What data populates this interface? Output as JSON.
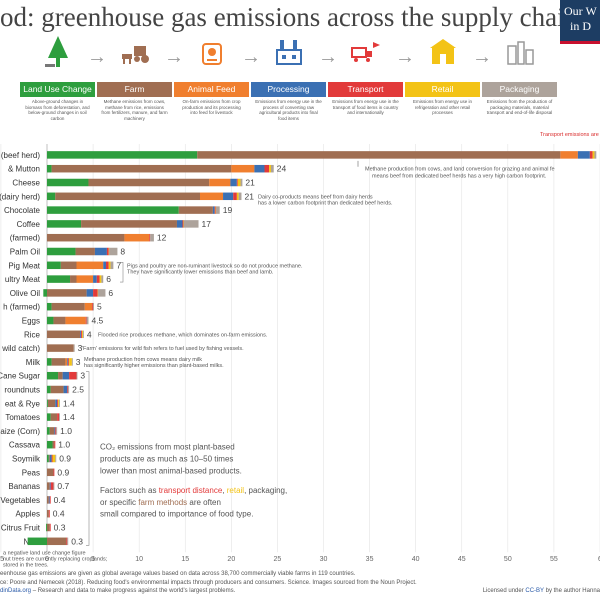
{
  "title": "od: greenhouse gas emissions across the supply chain",
  "logo": {
    "line1": "Our W",
    "line2": "in D"
  },
  "stages": [
    {
      "label": "Land Use Change",
      "color": "#2e9e3e",
      "icon": "tree-icon",
      "desc": "Above-ground changes in biomass from deforestation, and below-ground changes in soil carbon"
    },
    {
      "label": "Farm",
      "color": "#a06e52",
      "icon": "tractor-cow-icon",
      "desc": "Methane emissions from cows, methane from rice, emissions from fertilizers, manure, and farm machinery"
    },
    {
      "label": "Animal Feed",
      "color": "#f07f2f",
      "icon": "feed-icon",
      "desc": "On-farm emissions from crop production and its processing into feed for livestock"
    },
    {
      "label": "Processing",
      "color": "#3b70b3",
      "icon": "factory-icon",
      "desc": "Emissions from energy use in the process of converting raw agricultural products into final food items"
    },
    {
      "label": "Transport",
      "color": "#e23a3a",
      "icon": "truck-plane-icon",
      "desc": "Emissions from energy use in the transport of food items in country and internationally"
    },
    {
      "label": "Retail",
      "color": "#f3c316",
      "icon": "shop-icon",
      "desc": "Emissions from energy use in refrigeration and other retail processes"
    },
    {
      "label": "Packaging",
      "color": "#ada39b",
      "icon": "packaging-icon",
      "desc": "Emissions from the production of packaging materials, material transport and end-of-life disposal"
    }
  ],
  "chart_data": {
    "type": "bar",
    "orientation": "horizontal",
    "stacked": true,
    "xlabel": "Greenhouse gas emissions per kilogram of food product",
    "xlabel_sub": "(kg CO₂-equivalents per kg product)",
    "xlim": [
      -5,
      60
    ],
    "xticks": [
      "-5",
      "0",
      "5",
      "10",
      "15",
      "20",
      "25",
      "30",
      "35",
      "40",
      "45",
      "50",
      "55",
      "6"
    ],
    "grid": true,
    "series_names": [
      "Land Use Change",
      "Farm",
      "Animal Feed",
      "Processing",
      "Transport",
      "Retail",
      "Packaging"
    ],
    "series_colors": [
      "#2e9e3e",
      "#a06e52",
      "#f07f2f",
      "#3b70b3",
      "#e23a3a",
      "#f3c316",
      "#ada39b"
    ],
    "rows": [
      {
        "label": "(beef herd)",
        "total": "",
        "values": [
          16.3,
          39.4,
          1.9,
          1.3,
          0.3,
          0.2,
          0.2
        ]
      },
      {
        "label": "& Mutton",
        "total": "24",
        "values": [
          0.5,
          19.5,
          2.5,
          1.1,
          0.5,
          0.2,
          0.3
        ]
      },
      {
        "label": "Cheese",
        "total": "21",
        "values": [
          4.5,
          13.1,
          2.3,
          0.7,
          0.1,
          0.3,
          0.2
        ]
      },
      {
        "label": "(dairy herd)",
        "total": "21",
        "values": [
          0.9,
          15.7,
          2.5,
          1.1,
          0.4,
          0.2,
          0.3
        ]
      },
      {
        "label": "Chocolate",
        "total": "19",
        "values": [
          14.3,
          3.7,
          0,
          0.2,
          0.1,
          0.04,
          0.4
        ]
      },
      {
        "label": "Coffee",
        "total": "17",
        "values": [
          3.7,
          10.4,
          0,
          0.6,
          0.1,
          0.04,
          1.6
        ]
      },
      {
        "label": "(farmed)",
        "total": "12",
        "values": [
          0,
          8.4,
          2.7,
          0,
          0.1,
          0,
          0.4
        ]
      },
      {
        "label": "Palm Oil",
        "total": "8",
        "values": [
          3.1,
          2.1,
          0,
          1.3,
          0.2,
          0.04,
          0.9
        ]
      },
      {
        "label": "Pig Meat",
        "total": "7",
        "values": [
          1.5,
          1.7,
          2.9,
          0.3,
          0.3,
          0.2,
          0.3
        ]
      },
      {
        "label": "ultry Meat",
        "total": "6",
        "values": [
          2.5,
          0.7,
          1.8,
          0.4,
          0.3,
          0.2,
          0.2
        ]
      },
      {
        "label": "Olive Oil",
        "total": "6",
        "values": [
          -0.4,
          4.3,
          0,
          0.7,
          0.5,
          0.04,
          0.8
        ]
      },
      {
        "label": "h (farmed)",
        "total": "5",
        "values": [
          0.5,
          3.6,
          0.8,
          0,
          0.1,
          0,
          0.1
        ]
      },
      {
        "label": "Eggs",
        "total": "4.5",
        "values": [
          0.7,
          1.3,
          2.2,
          0,
          0.1,
          0,
          0.2
        ]
      },
      {
        "label": "Rice",
        "total": "4",
        "values": [
          0,
          3.6,
          0,
          0.1,
          0.1,
          0.1,
          0.1
        ]
      },
      {
        "label": "wild catch)",
        "total": "3",
        "values": [
          0,
          2.9,
          0,
          0,
          0,
          0,
          0.1
        ]
      },
      {
        "label": "Milk",
        "total": "3",
        "values": [
          0.5,
          1.5,
          0.2,
          0.1,
          0.1,
          0.3,
          0.1
        ]
      },
      {
        "label": "Cane Sugar",
        "total": "3",
        "values": [
          1.2,
          0.5,
          0,
          0.7,
          0.8,
          0,
          0.1
        ]
      },
      {
        "label": "roundnuts",
        "total": "2.5",
        "values": [
          0.4,
          1.4,
          0,
          0.4,
          0.1,
          0,
          0.1
        ]
      },
      {
        "label": "eat & Rye",
        "total": "1.4",
        "values": [
          0.1,
          0.8,
          0,
          0.2,
          0.1,
          0.1,
          0.1
        ]
      },
      {
        "label": "Tomatoes",
        "total": "1.4",
        "values": [
          0.4,
          0.7,
          0,
          0,
          0.2,
          0,
          0.1
        ]
      },
      {
        "label": "aize (Corn)",
        "total": "1.0",
        "values": [
          0.3,
          0.5,
          0,
          0.1,
          0.1,
          0,
          0.1
        ]
      },
      {
        "label": "Cassava",
        "total": "1.0",
        "values": [
          0.6,
          0.2,
          0,
          0,
          0.1,
          0,
          0
        ]
      },
      {
        "label": "Soymilk",
        "total": "0.9",
        "values": [
          0.2,
          0.1,
          0,
          0.2,
          0.1,
          0.3,
          0.1
        ]
      },
      {
        "label": "Peas",
        "total": "0.9",
        "values": [
          0,
          0.7,
          0,
          0,
          0.1,
          0,
          0
        ]
      },
      {
        "label": "Bananas",
        "total": "0.7",
        "values": [
          0,
          0.3,
          0,
          0.1,
          0.3,
          0,
          0.1
        ]
      },
      {
        "label": "Vegetables",
        "total": "0.4",
        "values": [
          0,
          0.2,
          0,
          0.1,
          0.1,
          0,
          0
        ]
      },
      {
        "label": "Apples",
        "total": "0.4",
        "values": [
          0,
          0.2,
          0,
          0,
          0.1,
          0,
          0
        ]
      },
      {
        "label": "Citrus Fruit",
        "total": "0.3",
        "values": [
          -0.1,
          0.3,
          0,
          0,
          0.1,
          0,
          0
        ]
      },
      {
        "label": "Nuts",
        "total": "0.3",
        "values": [
          -2.1,
          2.1,
          0,
          0,
          0.1,
          0,
          0.1
        ]
      }
    ],
    "annotations": {
      "transport": "Transport emissions are very small for food product",
      "beef_line1": "Methane production from cows, and land conversion for grazing and animal fe",
      "beef_line2": "means beef from dedicated beef herds has a very high carbon footprint.",
      "dairy_line1": "Dairy co-products means beef from dairy herds",
      "dairy_line2": "has a lower carbon footprint than dedicated beef herds.",
      "pig_line1": "Pigs and poultry are non-ruminant livestock so do not produce methane.",
      "pig_line2": "They have significantly lower emissions than beef and lamb.",
      "rice": "Flooded rice produces methane, which dominates on-farm emissions.",
      "fish": "'Farm' emissions for wild fish refers to fuel used by fishing vessels.",
      "milk_line1": "Methane production from cows means dairy milk",
      "milk_line2": "has significantly higher emissions than plant-based milks.",
      "nuts_line1": "a negative land use change figure",
      "nuts_line2": "nut trees are currently replacing croplands;",
      "nuts_line3": "stored in the trees.",
      "plant_line1": "CO₂ emissions from most plant-based",
      "plant_line2": "products are as much as 10–50 times",
      "plant_line3": "lower than most animal-based products.",
      "factors_line1_pre": "Factors such as ",
      "factors_transport": "transport distance",
      "factors_comma": ", ",
      "factors_retail": "retail",
      "factors_line1_post": ", packaging,",
      "factors_line2_pre": "or specific ",
      "factors_farm": "farm methods",
      "factors_line2_post": " are often",
      "factors_line3": "small compared to importance of food type."
    }
  },
  "footer": {
    "line1": "eenhouse gas emissions are given as global average values based on data across 38,700 commercially viable farms in 119 countries.",
    "line2": "ce: Poore and Nemecek (2018). Reducing food's environmental impacts through producers and consumers. Science. Images sourced from the Noun Project.",
    "site": "dinData.org",
    "line3": " – Research and data to make progress against the world's largest problems.",
    "license": "Licensed under ",
    "license_link": "CC-BY",
    "license_end": " by the author Hanna"
  }
}
